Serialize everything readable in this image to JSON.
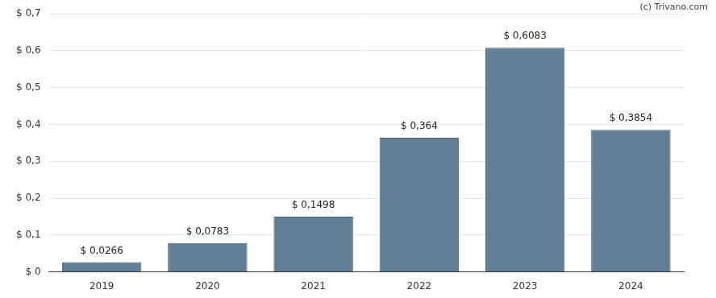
{
  "chart_data": {
    "type": "bar",
    "annotations": [
      "(c) Trivano.com"
    ],
    "categories": [
      "2019",
      "2020",
      "2021",
      "2022",
      "2023",
      "2024"
    ],
    "values": [
      0.0266,
      0.0783,
      0.1498,
      0.364,
      0.6083,
      0.3854
    ],
    "value_labels": [
      "$ 0,0266",
      "$ 0,0783",
      "$ 0,1498",
      "$ 0,364",
      "$ 0,6083",
      "$ 0,3854"
    ],
    "data_labels": true,
    "color": "#647f94",
    "ylim": [
      0,
      0.7
    ],
    "yticks": [
      {
        "value": 0,
        "label": "$ 0"
      },
      {
        "value": 0.1,
        "label": "$ 0,1"
      },
      {
        "value": 0.2,
        "label": "$ 0,2"
      },
      {
        "value": 0.3,
        "label": "$ 0,3"
      },
      {
        "value": 0.4,
        "label": "$ 0,4"
      },
      {
        "value": 0.5,
        "label": "$ 0,5"
      },
      {
        "value": 0.6,
        "label": "$ 0,6"
      },
      {
        "value": 0.7,
        "label": "$ 0,7"
      }
    ],
    "grid": true
  }
}
